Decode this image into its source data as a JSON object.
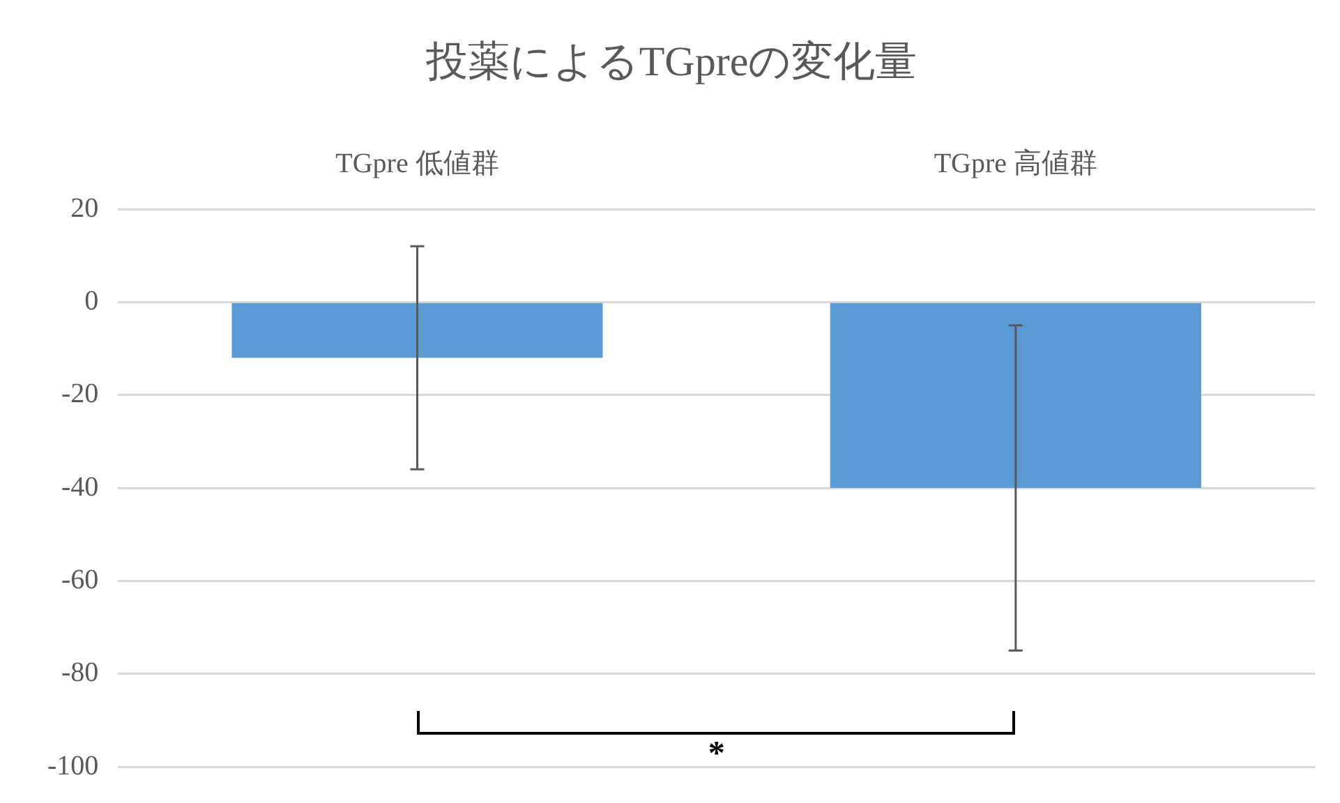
{
  "chart_data": {
    "type": "bar",
    "title": "投薬によるTGpreの変化量",
    "categories": [
      "TGpre 低値群",
      "TGpre 高値群"
    ],
    "values": [
      -12,
      -40
    ],
    "errors": [
      24,
      35
    ],
    "color": "#5b9bd5",
    "ylim": [
      -100,
      20
    ],
    "yticks": [
      20,
      0,
      -20,
      -40,
      -60,
      -80,
      -100
    ],
    "grid": "y",
    "legend": false,
    "annotations": [
      "*"
    ]
  }
}
